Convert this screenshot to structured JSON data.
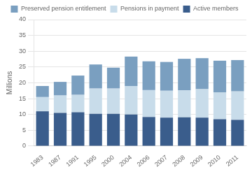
{
  "chart_data": {
    "type": "bar",
    "stacked": true,
    "categories": [
      "1983",
      "1987",
      "1991",
      "1995",
      "2000",
      "2004",
      "2006",
      "2007",
      "2008",
      "2009",
      "2010",
      "2011"
    ],
    "series": [
      {
        "name": "Active members",
        "color": "#3a5d8c",
        "values": [
          11.0,
          10.5,
          10.7,
          10.2,
          10.2,
          10.0,
          9.2,
          9.0,
          9.1,
          9.0,
          8.5,
          8.3
        ]
      },
      {
        "name": "Pensions in payment",
        "color": "#c8dcea",
        "values": [
          4.5,
          5.5,
          5.5,
          8.0,
          8.0,
          9.0,
          8.5,
          8.5,
          8.5,
          9.0,
          8.5,
          9.0
        ]
      },
      {
        "name": "Preserved pension entitlement",
        "color": "#7a9fc0",
        "values": [
          3.5,
          4.3,
          6.1,
          7.6,
          6.6,
          9.3,
          9.1,
          9.1,
          10.0,
          9.8,
          10.0,
          9.9
        ]
      }
    ],
    "ylabel": "Millions",
    "ylim": [
      0,
      40
    ],
    "yticks": [
      0,
      5,
      10,
      15,
      20,
      25,
      30,
      35,
      40
    ],
    "grid": true,
    "legend": "top"
  }
}
